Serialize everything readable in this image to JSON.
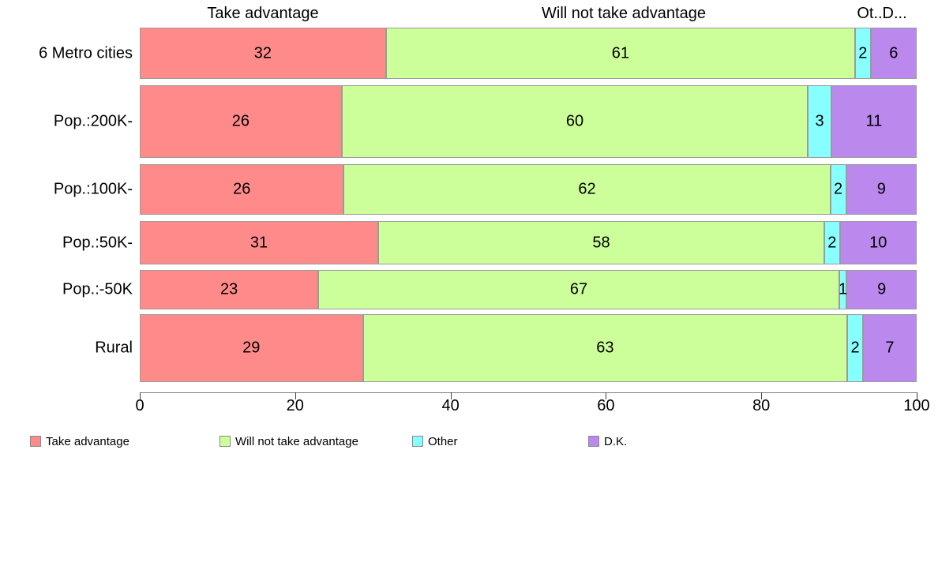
{
  "chart_data": {
    "type": "bar",
    "variant": "horizontal-stacked-percentage",
    "title": "",
    "xlabel": "",
    "ylabel": "",
    "xlim": [
      0,
      100
    ],
    "grid": false,
    "categories": [
      "6 Metro cities",
      "Pop.:200K-",
      "Pop.:100K-",
      "Pop.:50K-",
      "Pop.:-50K",
      "Rural"
    ],
    "series": [
      {
        "name": "Take advantage",
        "color": "#FF8A8A",
        "values": [
          32,
          26,
          26,
          31,
          23,
          29
        ]
      },
      {
        "name": "Will not take advantage",
        "color": "#CCFF99",
        "values": [
          61,
          60,
          62,
          58,
          67,
          63
        ]
      },
      {
        "name": "Other",
        "color": "#88FFFF",
        "values": [
          2,
          3,
          2,
          2,
          1,
          2
        ]
      },
      {
        "name": "D.K.",
        "color": "#BB88EE",
        "values": [
          6,
          11,
          9,
          10,
          9,
          7
        ]
      }
    ],
    "column_headers": [
      "Take advantage",
      "Will not take advantage",
      "Ot..D..."
    ],
    "x_ticks": [
      "0",
      "20",
      "40",
      "60",
      "80",
      "100"
    ],
    "legend": [
      {
        "label": "Take advantage",
        "color": "#FF8A8A"
      },
      {
        "label": "Will not take advantage",
        "color": "#CCFF99"
      },
      {
        "label": "Other",
        "color": "#88FFFF"
      },
      {
        "label": "D.K.",
        "color": "#BB88EE"
      }
    ],
    "legend_position": "bottom"
  }
}
